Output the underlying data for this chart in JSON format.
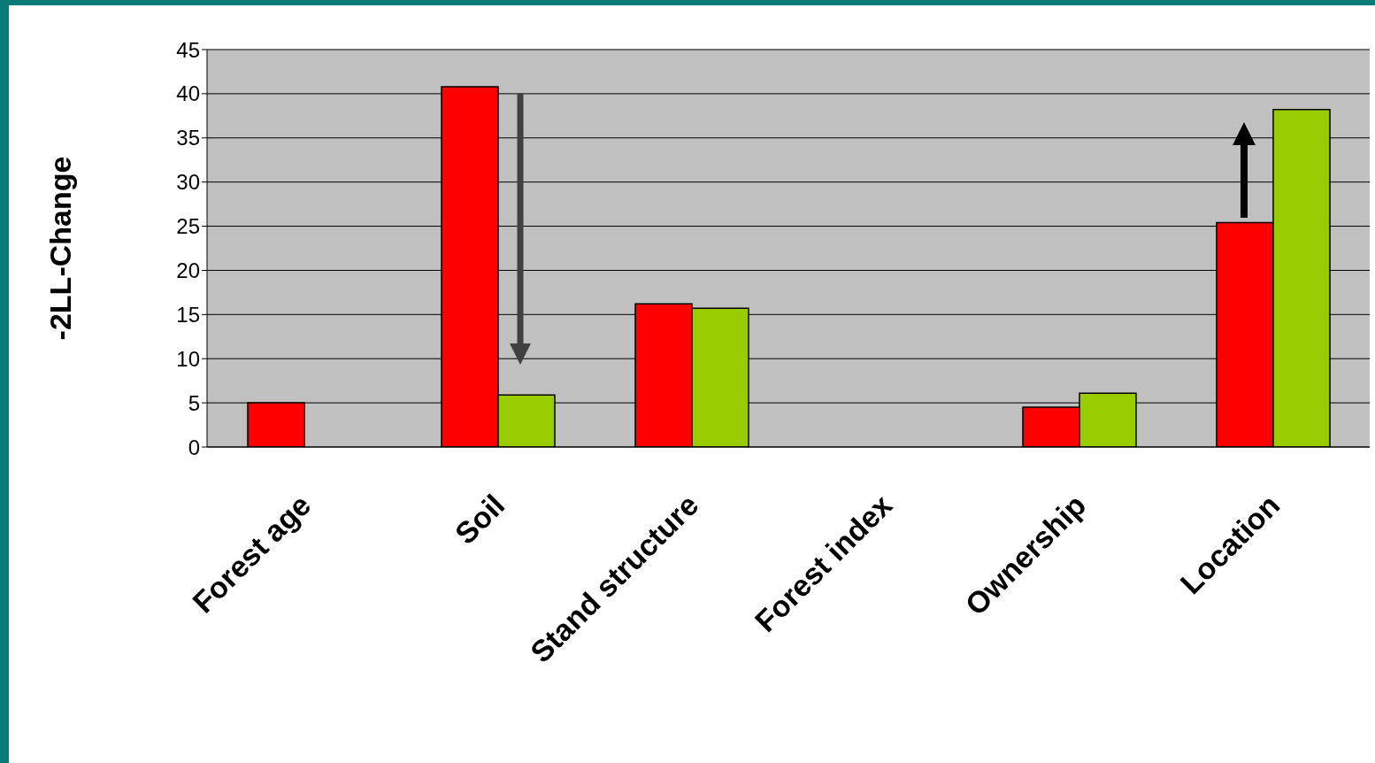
{
  "chart_data": {
    "type": "bar",
    "ylabel": "-2LL-Change",
    "categories": [
      "Forest age",
      "Soil",
      "Stand structure",
      "Forest index",
      "Ownership",
      "Location"
    ],
    "series": [
      {
        "color": "#ff0000",
        "values": [
          5.0,
          40.8,
          16.2,
          null,
          4.5,
          25.4
        ]
      },
      {
        "color": "#99cc00",
        "values": [
          null,
          5.9,
          15.7,
          null,
          6.1,
          38.2
        ]
      }
    ],
    "ylim": [
      0,
      45
    ],
    "yticks": [
      0,
      5,
      10,
      15,
      20,
      25,
      30,
      35,
      40,
      45
    ],
    "grid": "y",
    "legend": false
  }
}
